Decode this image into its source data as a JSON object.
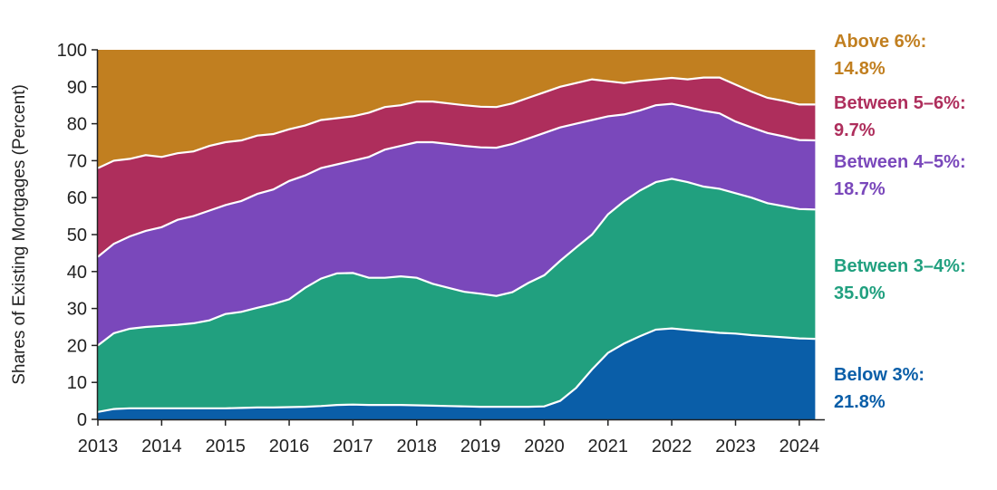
{
  "chart_data": {
    "type": "area",
    "stacked": true,
    "title": "",
    "ylabel": "Shares of Existing Mortgages (Percent)",
    "xlabel": "",
    "xlim": [
      2013,
      2024.4
    ],
    "ylim": [
      0,
      100
    ],
    "y_ticks": [
      0,
      10,
      20,
      30,
      40,
      50,
      60,
      70,
      80,
      90,
      100
    ],
    "x_ticks": [
      2013,
      2014,
      2015,
      2016,
      2017,
      2018,
      2019,
      2020,
      2021,
      2022,
      2023,
      2024
    ],
    "grid": false,
    "x": [
      2013.0,
      2013.25,
      2013.5,
      2013.75,
      2014.0,
      2014.25,
      2014.5,
      2014.75,
      2015.0,
      2015.25,
      2015.5,
      2015.75,
      2016.0,
      2016.25,
      2016.5,
      2016.75,
      2017.0,
      2017.25,
      2017.5,
      2017.75,
      2018.0,
      2018.25,
      2018.5,
      2018.75,
      2019.0,
      2019.25,
      2019.5,
      2019.75,
      2020.0,
      2020.25,
      2020.5,
      2020.75,
      2021.0,
      2021.25,
      2021.5,
      2021.75,
      2022.0,
      2022.25,
      2022.5,
      2022.75,
      2023.0,
      2023.25,
      2023.5,
      2023.75,
      2024.0,
      2024.25
    ],
    "series": [
      {
        "name": "Below 3%",
        "color": "#0a5ea8",
        "values": [
          2.0,
          2.8,
          3.0,
          3.0,
          3.0,
          3.0,
          3.0,
          3.0,
          3.0,
          3.1,
          3.2,
          3.2,
          3.3,
          3.4,
          3.6,
          3.9,
          4.0,
          3.9,
          3.9,
          3.9,
          3.8,
          3.7,
          3.6,
          3.5,
          3.4,
          3.4,
          3.4,
          3.4,
          3.5,
          5.0,
          8.5,
          13.5,
          18.0,
          20.5,
          22.5,
          24.3,
          24.6,
          24.2,
          23.8,
          23.4,
          23.2,
          22.8,
          22.5,
          22.2,
          21.9,
          21.8
        ]
      },
      {
        "name": "Between 3–4%",
        "color": "#21a07f",
        "values": [
          18.0,
          20.5,
          21.5,
          22.0,
          22.3,
          22.6,
          23.0,
          23.8,
          25.5,
          26.0,
          27.0,
          28.0,
          29.2,
          32.2,
          34.5,
          35.6,
          35.6,
          34.4,
          34.4,
          34.8,
          34.5,
          33.0,
          32.0,
          31.0,
          30.6,
          30.0,
          31.0,
          33.5,
          35.5,
          37.9,
          38.0,
          36.5,
          37.5,
          38.5,
          39.4,
          39.9,
          40.5,
          40.0,
          39.2,
          39.0,
          38.0,
          37.2,
          36.0,
          35.5,
          35.0,
          35.0
        ]
      },
      {
        "name": "Between 4–5%",
        "color": "#7a48bb",
        "values": [
          24.0,
          24.2,
          25.0,
          26.0,
          26.7,
          28.4,
          29.0,
          29.7,
          29.5,
          30.0,
          30.8,
          31.0,
          32.0,
          30.4,
          29.9,
          29.5,
          30.4,
          32.7,
          34.7,
          35.3,
          36.7,
          38.3,
          38.9,
          39.5,
          39.6,
          40.1,
          40.1,
          39.1,
          38.5,
          36.1,
          33.5,
          31.0,
          26.5,
          23.5,
          21.7,
          20.8,
          20.3,
          20.3,
          20.5,
          20.4,
          19.4,
          19.0,
          19.0,
          18.9,
          18.7,
          18.7
        ]
      },
      {
        "name": "Between 5–6%",
        "color": "#ae2e5c",
        "values": [
          24.0,
          22.5,
          21.0,
          20.5,
          19.0,
          18.0,
          17.5,
          17.5,
          17.0,
          16.4,
          15.8,
          15.0,
          14.0,
          13.5,
          13.0,
          12.5,
          12.0,
          12.0,
          11.5,
          11.0,
          11.0,
          11.0,
          11.0,
          11.0,
          11.0,
          11.0,
          11.0,
          11.0,
          11.0,
          11.0,
          11.0,
          11.0,
          9.5,
          8.5,
          8.0,
          7.0,
          7.0,
          7.5,
          9.0,
          9.7,
          10.0,
          9.7,
          9.5,
          9.6,
          9.6,
          9.7
        ]
      },
      {
        "name": "Above 6%",
        "color": "#c17f20",
        "values": [
          32.0,
          30.0,
          29.5,
          28.5,
          29.0,
          28.0,
          27.5,
          26.0,
          25.0,
          24.5,
          23.2,
          22.8,
          21.5,
          20.5,
          19.0,
          18.5,
          18.0,
          17.0,
          15.5,
          15.0,
          14.0,
          14.0,
          14.5,
          15.0,
          15.4,
          15.5,
          14.5,
          13.0,
          11.5,
          10.0,
          9.0,
          8.0,
          8.5,
          9.0,
          8.4,
          8.0,
          7.6,
          8.0,
          7.5,
          7.5,
          9.4,
          11.3,
          13.0,
          13.8,
          14.8,
          14.8
        ]
      }
    ],
    "end_labels": [
      {
        "line1": "Above 6%:",
        "line2": "14.8%",
        "color": "#c17f20"
      },
      {
        "line1": "Between 5–6%:",
        "line2": "9.7%",
        "color": "#ae2e5c"
      },
      {
        "line1": "Between 4–5%:",
        "line2": "18.7%",
        "color": "#7a48bb"
      },
      {
        "line1": "Between 3–4%:",
        "line2": "35.0%",
        "color": "#21a07f"
      },
      {
        "line1": "Below 3%:",
        "line2": "21.8%",
        "color": "#0a5ea8"
      }
    ]
  }
}
